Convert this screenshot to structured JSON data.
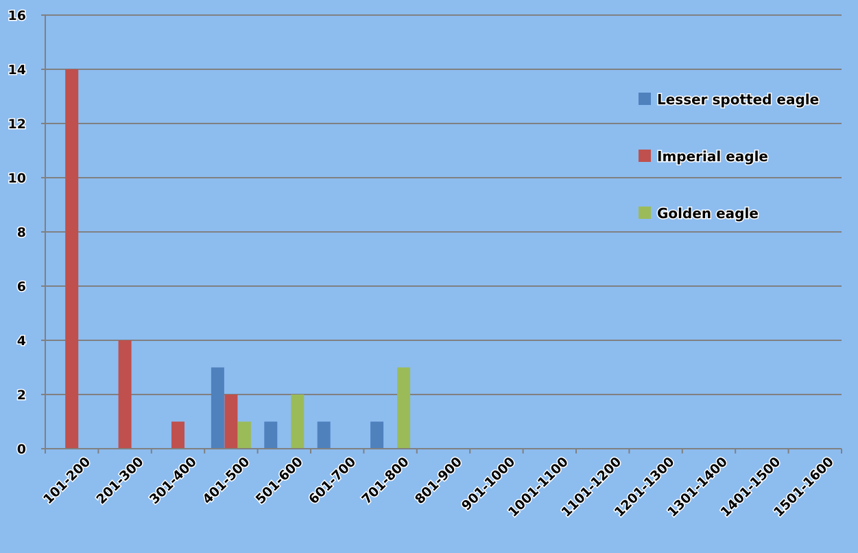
{
  "chart_data": {
    "type": "bar",
    "title": "",
    "xlabel": "",
    "ylabel": "",
    "ylim": [
      0,
      16
    ],
    "yticks": [
      0,
      2,
      4,
      6,
      8,
      10,
      12,
      14,
      16
    ],
    "grid": true,
    "legend_position": "right",
    "categories": [
      "101-200",
      "201-300",
      "301-400",
      "401-500",
      "501-600",
      "601-700",
      "701-800",
      "801-900",
      "901-1000",
      "1001-1100",
      "1101-1200",
      "1201-1300",
      "1301-1400",
      "1401-1500",
      "1501-1600"
    ],
    "series": [
      {
        "name": "Lesser spotted eagle",
        "color": "#4f81bd",
        "values": [
          0,
          0,
          0,
          3,
          1,
          1,
          1,
          0,
          0,
          0,
          0,
          0,
          0,
          0,
          0
        ]
      },
      {
        "name": "Imperial eagle",
        "color": "#c0504d",
        "values": [
          14,
          4,
          1,
          2,
          0,
          0,
          0,
          0,
          0,
          0,
          0,
          0,
          0,
          0,
          0
        ]
      },
      {
        "name": "Golden eagle",
        "color": "#9bbb59",
        "values": [
          0,
          0,
          0,
          1,
          2,
          0,
          3,
          0,
          0,
          0,
          0,
          0,
          0,
          0,
          0
        ]
      }
    ],
    "colors": {
      "background": "#8dbcef",
      "gridline": "#808080",
      "axis": "#808080"
    }
  }
}
